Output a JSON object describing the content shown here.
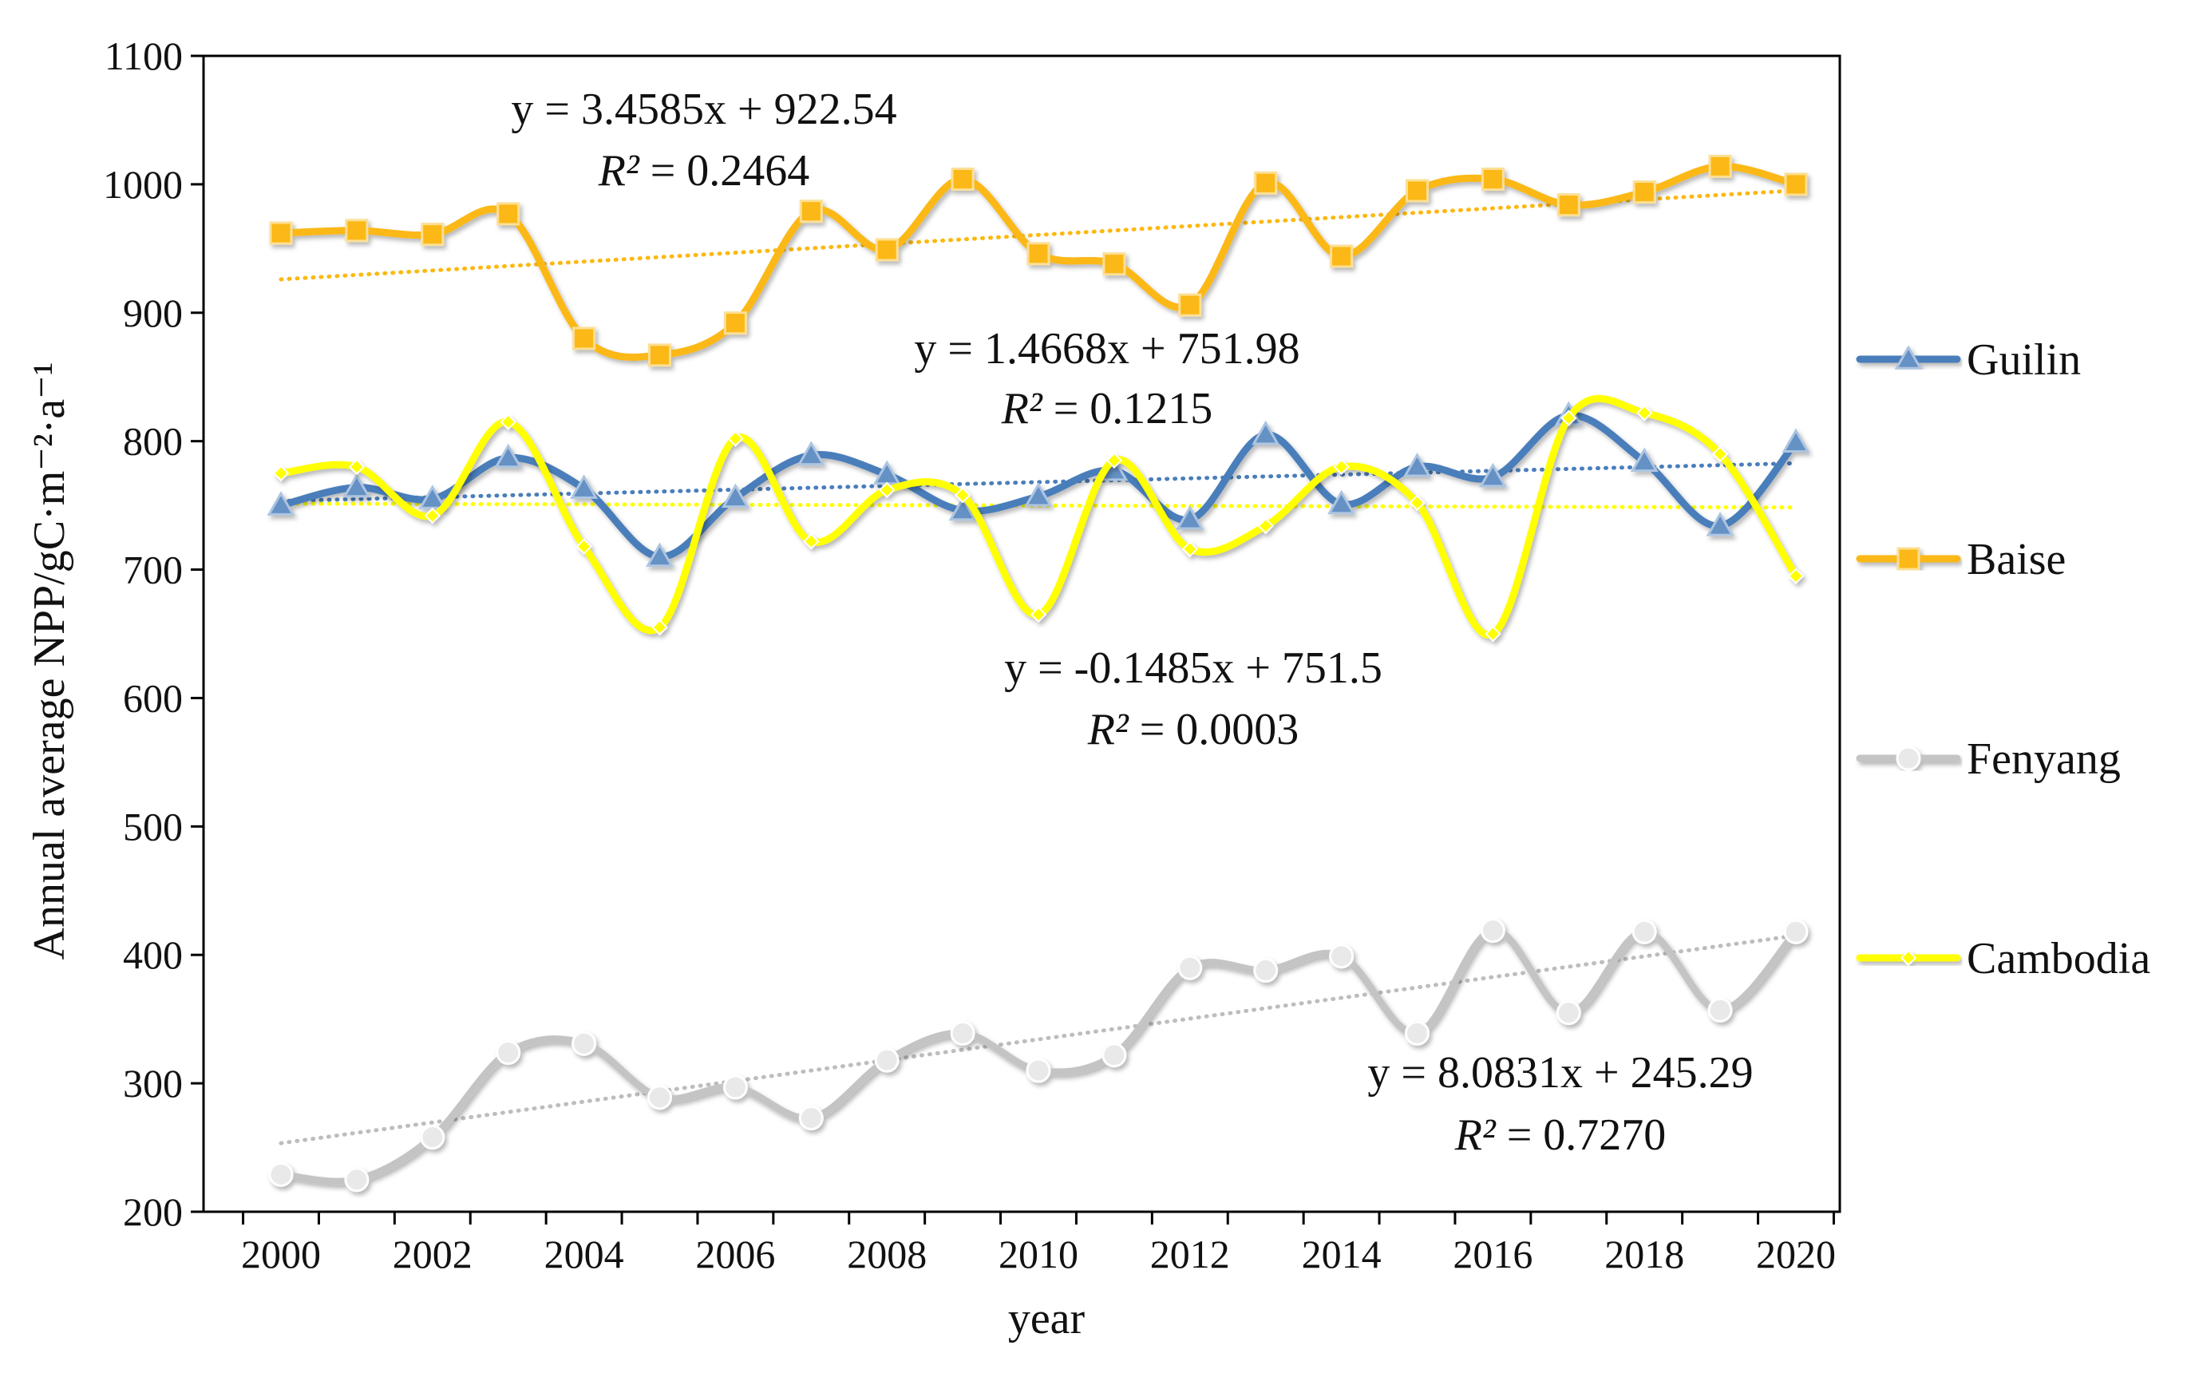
{
  "chart_data": {
    "type": "line",
    "xlabel": "year",
    "ylabel": "Annual average NPP/gC·m⁻²·a⁻¹",
    "xlim": [
      2000,
      2020
    ],
    "ylim": [
      200,
      1100
    ],
    "xticks": [
      "2000",
      "2002",
      "2004",
      "2006",
      "2008",
      "2010",
      "2012",
      "2014",
      "2016",
      "2018",
      "2020"
    ],
    "yticks": [
      "200",
      "300",
      "400",
      "500",
      "600",
      "700",
      "800",
      "900",
      "1000",
      "1100"
    ],
    "grid": false,
    "legend_position": "right",
    "x": [
      2000,
      2001,
      2002,
      2003,
      2004,
      2005,
      2006,
      2007,
      2008,
      2009,
      2010,
      2011,
      2012,
      2013,
      2014,
      2015,
      2016,
      2017,
      2018,
      2019,
      2020
    ],
    "series": [
      {
        "name": "Guilin",
        "color": "#4a7ebb",
        "marker": "triangle",
        "values": [
          750,
          764,
          755,
          787,
          763,
          710,
          756,
          789,
          774,
          746,
          757,
          777,
          739,
          805,
          751,
          780,
          772,
          820,
          784,
          734,
          799
        ],
        "trend": {
          "slope": 1.4668,
          "intercept": 751.98,
          "equation": "y = 1.4668x + 751.98",
          "r2_label": "R²",
          "r2_value": " = 0.1215"
        }
      },
      {
        "name": "Baise",
        "color": "#fbb812",
        "marker": "square",
        "values": [
          962,
          964,
          961,
          977,
          880,
          867,
          892,
          979,
          949,
          1004,
          946,
          938,
          906,
          1001,
          944,
          995,
          1004,
          984,
          994,
          1014,
          1000
        ],
        "trend": {
          "slope": 3.4585,
          "intercept": 922.54,
          "equation": "y = 3.4585x + 922.54",
          "r2_label": "R²",
          "r2_value": " = 0.2464"
        }
      },
      {
        "name": "Fenyang",
        "color": "#c4c4c4",
        "marker": "circle",
        "values": [
          229,
          225,
          258,
          324,
          331,
          289,
          297,
          273,
          318,
          339,
          310,
          322,
          390,
          388,
          399,
          339,
          419,
          355,
          418,
          357,
          418
        ],
        "trend": {
          "slope": 8.0831,
          "intercept": 245.29,
          "equation": "y = 8.0831x + 245.29",
          "r2_label": "R²",
          "r2_value": " = 0.7270"
        }
      },
      {
        "name": "Cambodia",
        "color": "#ffff00",
        "marker": "diamond",
        "values": [
          775,
          780,
          742,
          815,
          718,
          655,
          802,
          722,
          762,
          758,
          665,
          785,
          716,
          734,
          780,
          752,
          650,
          818,
          822,
          790,
          695
        ],
        "trend": {
          "slope": -0.1485,
          "intercept": 751.5,
          "equation": "y = -0.1485x + 751.5",
          "r2_label": "R²",
          "r2_value": " = 0.0003"
        }
      }
    ]
  }
}
